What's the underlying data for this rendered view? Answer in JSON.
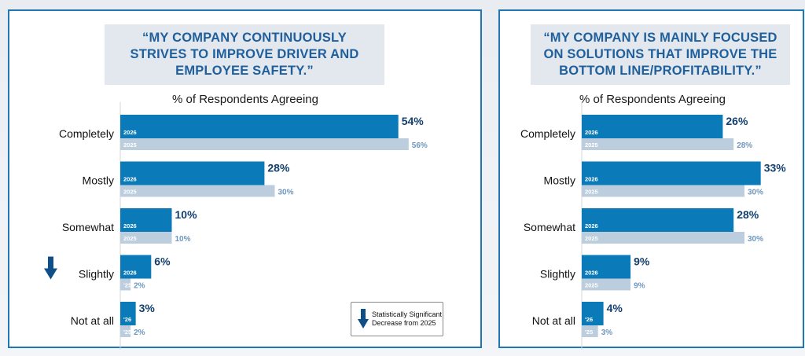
{
  "colors": {
    "y2026": "#0a7ab8",
    "y2025": "#bccddd",
    "label2026": "#123f6e",
    "label2025": "#6e97bd",
    "border": "#1f77b4",
    "arrow": "#0d4f86"
  },
  "chart_data": [
    {
      "type": "bar",
      "title": "“MY COMPANY CONTINUOUSLY STRIVES TO IMPROVE DRIVER AND EMPLOYEE SAFETY.”",
      "title_lines": [
        "“MY COMPANY CONTINUOUSLY",
        "STRIVES TO IMPROVE DRIVER AND",
        "EMPLOYEE SAFETY.”"
      ],
      "subtitle": "% of Respondents Agreeing",
      "categories": [
        "Completely",
        "Mostly",
        "Somewhat",
        "Slightly",
        "Not at all"
      ],
      "series": [
        {
          "name": "2026",
          "short_name": "'26",
          "values": [
            54,
            28,
            10,
            6,
            3
          ],
          "labels": [
            "54%",
            "28%",
            "10%",
            "6%",
            "3%"
          ]
        },
        {
          "name": "2025",
          "short_name": "'25",
          "values": [
            56,
            30,
            10,
            2,
            2
          ],
          "labels": [
            "56%",
            "30%",
            "10%",
            "2%",
            "2%"
          ]
        }
      ],
      "significant_decrease": [
        false,
        false,
        false,
        true,
        false
      ],
      "xlim": [
        0,
        60
      ],
      "legend": {
        "text": "Statistically Significant Decrease from 2025",
        "placement": "bottom-right"
      }
    },
    {
      "type": "bar",
      "title": "“MY COMPANY IS MAINLY FOCUSED ON SOLUTIONS THAT IMPROVE THE BOTTOM LINE/PROFITABILITY.”",
      "title_lines": [
        "“MY COMPANY IS MAINLY FOCUSED",
        "ON SOLUTIONS THAT IMPROVE THE",
        "BOTTOM LINE/PROFITABILITY.”"
      ],
      "subtitle": "% of Respondents Agreeing",
      "categories": [
        "Completely",
        "Mostly",
        "Somewhat",
        "Slightly",
        "Not at all"
      ],
      "series": [
        {
          "name": "2026",
          "short_name": "'26",
          "values": [
            26,
            33,
            28,
            9,
            4
          ],
          "labels": [
            "26%",
            "33%",
            "28%",
            "9%",
            "4%"
          ]
        },
        {
          "name": "2025",
          "short_name": "'25",
          "values": [
            28,
            30,
            30,
            9,
            3
          ],
          "labels": [
            "28%",
            "30%",
            "30%",
            "9%",
            "3%"
          ]
        }
      ],
      "significant_decrease": [
        false,
        false,
        false,
        false,
        false
      ],
      "xlim": [
        0,
        35
      ]
    }
  ]
}
